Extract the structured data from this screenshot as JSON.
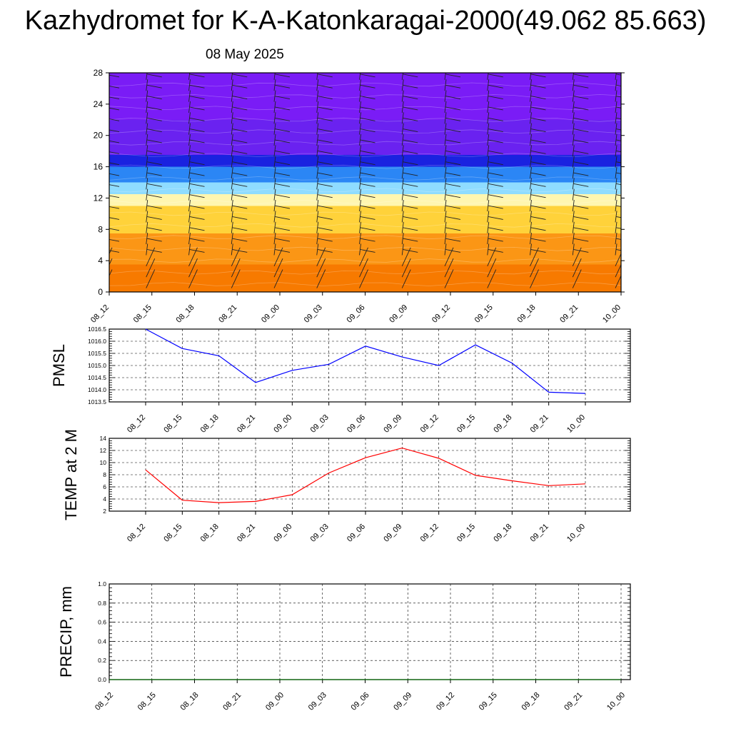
{
  "title": "Kazhydromet for K-A-Katonkaragai-2000(49.062 85.663)",
  "subtitle": "08 May 2025",
  "chart_data": [
    {
      "type": "heatmap",
      "description_title": "",
      "x_categories": [
        "08_12",
        "08_15",
        "08_18",
        "08_21",
        "09_00",
        "09_03",
        "09_06",
        "09_09",
        "09_12",
        "09_15",
        "09_18",
        "09_21",
        "10_00"
      ],
      "ylabel": "",
      "ylim": [
        0,
        28
      ],
      "y_ticks": [
        0,
        4,
        8,
        12,
        16,
        20,
        24,
        28
      ],
      "color_bands": [
        {
          "from": 0,
          "to": 3.5,
          "color": "#f77a00"
        },
        {
          "from": 3.5,
          "to": 7.5,
          "color": "#fb9615"
        },
        {
          "from": 7.5,
          "to": 11,
          "color": "#ffd23a"
        },
        {
          "from": 11,
          "to": 12.5,
          "color": "#fff6b0"
        },
        {
          "from": 12.5,
          "to": 14,
          "color": "#8fdcff"
        },
        {
          "from": 14,
          "to": 16,
          "color": "#2b86f5"
        },
        {
          "from": 16,
          "to": 17.5,
          "color": "#1a22e0"
        },
        {
          "from": 17.5,
          "to": 22,
          "color": "#6a22f0"
        },
        {
          "from": 22,
          "to": 28,
          "color": "#7a1cf6"
        }
      ],
      "has_wind_barbs": true
    },
    {
      "type": "line",
      "ylabel": "PMSL",
      "categories": [
        "08_12",
        "08_15",
        "08_18",
        "08_21",
        "09_00",
        "09_03",
        "09_06",
        "09_09",
        "09_12",
        "09_15",
        "09_18",
        "09_21",
        "10_00"
      ],
      "series": [
        {
          "values": [
            1016.5,
            1015.7,
            1015.4,
            1014.3,
            1014.8,
            1015.05,
            1015.8,
            1015.35,
            1015.0,
            1015.85,
            1015.1,
            1013.9,
            1013.85
          ],
          "color": "#0000ff"
        }
      ],
      "ylim": [
        1013.5,
        1016.5
      ],
      "y_ticks": [
        "1013.5",
        "1014.0",
        "1014.5",
        "1015.0",
        "1015.5",
        "1016.0",
        "1016.5"
      ],
      "grid": true
    },
    {
      "type": "line",
      "ylabel": "TEMP at 2 M",
      "categories": [
        "08_12",
        "08_15",
        "08_18",
        "08_21",
        "09_00",
        "09_03",
        "09_06",
        "09_09",
        "09_12",
        "09_15",
        "09_18",
        "09_21",
        "10_00"
      ],
      "series": [
        {
          "values": [
            8.8,
            3.8,
            3.4,
            3.6,
            4.7,
            8.3,
            10.8,
            12.4,
            10.7,
            7.9,
            7.0,
            6.2,
            6.5
          ],
          "color": "#ff0000"
        }
      ],
      "ylim": [
        2,
        14
      ],
      "y_ticks": [
        "2",
        "4",
        "6",
        "8",
        "10",
        "12",
        "14"
      ],
      "grid": true
    },
    {
      "type": "line",
      "ylabel": "PRECIP, mm",
      "categories": [
        "08_12",
        "08_15",
        "08_18",
        "08_21",
        "09_00",
        "09_03",
        "09_06",
        "09_09",
        "09_12",
        "09_15",
        "09_18",
        "09_21",
        "10_00"
      ],
      "series": [
        {
          "values": [
            0,
            0,
            0,
            0,
            0,
            0,
            0,
            0,
            0,
            0,
            0,
            0,
            0
          ],
          "color": "#006400"
        }
      ],
      "ylim": [
        0,
        1
      ],
      "y_ticks": [
        "0.0",
        "0.2",
        "0.4",
        "0.6",
        "0.8",
        "1.0"
      ],
      "grid": true
    }
  ]
}
